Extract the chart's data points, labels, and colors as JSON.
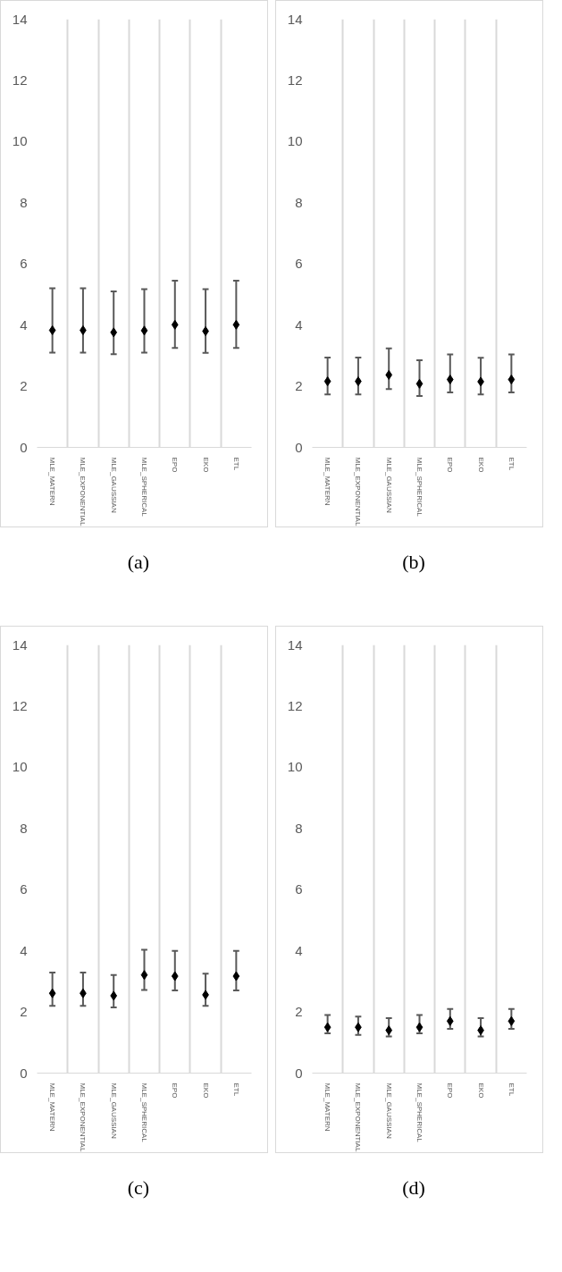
{
  "chart_data": [
    {
      "type": "scatter",
      "title": "(a)",
      "categories": [
        "MLE_MATERN",
        "MLE_EXPONENTIAL",
        "MLE_GAUSSIAN",
        "MLE_SPHERICAL",
        "EPO",
        "EKO",
        "ETL"
      ],
      "ylim": [
        0,
        14
      ],
      "yticks": [
        0,
        2,
        4,
        6,
        8,
        10,
        12,
        14
      ],
      "grid": "x",
      "marker": "diamond",
      "series": [
        {
          "color": "#000000",
          "values": [
            3.83,
            3.83,
            3.76,
            3.82,
            4.01,
            3.8,
            4.01
          ],
          "errors": [
            [
              3.1,
              5.2
            ],
            [
              3.1,
              5.2
            ],
            [
              3.05,
              5.1
            ],
            [
              3.1,
              5.17
            ],
            [
              3.25,
              5.45
            ],
            [
              3.09,
              5.17
            ],
            [
              3.25,
              5.45
            ]
          ]
        }
      ]
    },
    {
      "type": "scatter",
      "title": "(b)",
      "categories": [
        "MLE_MATERN",
        "MLE_EXPONENTIAL",
        "MLE_GAUSSIAN",
        "MLE_SPHERICAL",
        "EPO",
        "EKO",
        "ETL"
      ],
      "ylim": [
        0,
        14
      ],
      "yticks": [
        0,
        2,
        4,
        6,
        8,
        10,
        12,
        14
      ],
      "grid": "x",
      "marker": "diamond",
      "series": [
        {
          "color": "#000000",
          "values": [
            2.16,
            2.16,
            2.37,
            2.08,
            2.22,
            2.15,
            2.22
          ],
          "errors": [
            [
              1.73,
              2.94
            ],
            [
              1.73,
              2.94
            ],
            [
              1.91,
              3.24
            ],
            [
              1.68,
              2.85
            ],
            [
              1.8,
              3.04
            ],
            [
              1.73,
              2.93
            ],
            [
              1.8,
              3.04
            ]
          ]
        }
      ]
    },
    {
      "type": "scatter",
      "title": "(c)",
      "categories": [
        "MLE_MATERN",
        "MLE_EXPONENTIAL",
        "MLE_GAUSSIAN",
        "MLE_SPHERICAL",
        "EPO",
        "EKO",
        "ETL"
      ],
      "ylim": [
        0,
        14
      ],
      "yticks": [
        0,
        2,
        4,
        6,
        8,
        10,
        12,
        14
      ],
      "grid": "x",
      "marker": "diamond",
      "series": [
        {
          "color": "#000000",
          "values": [
            2.61,
            2.61,
            2.53,
            3.21,
            3.17,
            2.56,
            3.17
          ],
          "errors": [
            [
              2.2,
              3.29
            ],
            [
              2.2,
              3.29
            ],
            [
              2.15,
              3.21
            ],
            [
              2.72,
              4.03
            ],
            [
              2.7,
              4.0
            ],
            [
              2.2,
              3.25
            ],
            [
              2.7,
              4.0
            ]
          ]
        }
      ]
    },
    {
      "type": "scatter",
      "title": "(d)",
      "categories": [
        "MLE_MATERN",
        "MLE_EXPONENTIAL",
        "MLE_GAUSSIAN",
        "MLE_SPHERICAL",
        "EPO",
        "EKO",
        "ETL"
      ],
      "ylim": [
        0,
        14
      ],
      "yticks": [
        0,
        2,
        4,
        6,
        8,
        10,
        12,
        14
      ],
      "grid": "x",
      "marker": "diamond",
      "series": [
        {
          "color": "#000000",
          "values": [
            1.5,
            1.5,
            1.4,
            1.5,
            1.7,
            1.4,
            1.7
          ],
          "errors": [
            [
              1.3,
              1.9
            ],
            [
              1.25,
              1.85
            ],
            [
              1.2,
              1.8
            ],
            [
              1.3,
              1.9
            ],
            [
              1.45,
              2.1
            ],
            [
              1.2,
              1.8
            ],
            [
              1.45,
              2.1
            ]
          ]
        }
      ]
    }
  ]
}
